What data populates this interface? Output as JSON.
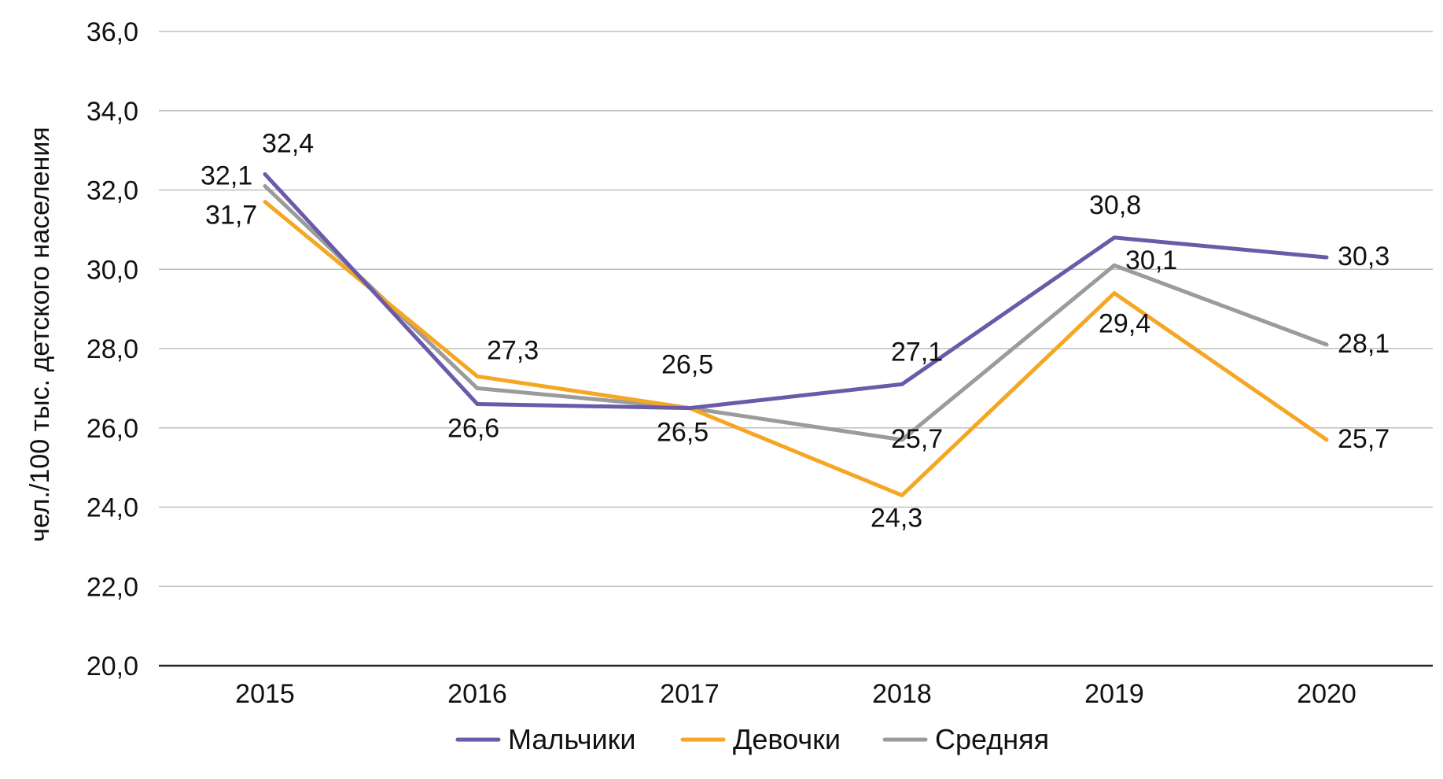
{
  "chart_data": {
    "type": "line",
    "title": "",
    "xlabel": "",
    "ylabel": "чел./100 тыс. детского населения",
    "ylim": [
      20,
      36
    ],
    "ystep": 2,
    "categories": [
      "2015",
      "2016",
      "2017",
      "2018",
      "2019",
      "2020"
    ],
    "grid": true,
    "legend": "bottom",
    "series": [
      {
        "name": "Мальчики",
        "color": "#6a5aa8",
        "values": [
          32.4,
          26.6,
          26.5,
          27.1,
          30.8,
          30.3
        ],
        "labels": [
          "32,4",
          "26,6",
          "",
          "27,1",
          "30,8",
          "30,3"
        ]
      },
      {
        "name": "Девочки",
        "color": "#f5a623",
        "values": [
          31.7,
          27.3,
          26.5,
          24.3,
          29.4,
          25.7
        ],
        "labels": [
          "31,7",
          "27,3",
          "26,5",
          "24,3",
          "29,4",
          "25,7"
        ]
      },
      {
        "name": "Средняя",
        "color": "#9b9b9b",
        "values": [
          32.1,
          27.0,
          26.5,
          25.7,
          30.1,
          28.1
        ],
        "labels": [
          "32,1",
          "",
          "26,5",
          "25,7",
          "30,1",
          "28,1"
        ]
      }
    ],
    "ytick_labels": [
      "20,0",
      "22,0",
      "24,0",
      "26,0",
      "28,0",
      "30,0",
      "32,0",
      "34,0",
      "36,0"
    ]
  }
}
